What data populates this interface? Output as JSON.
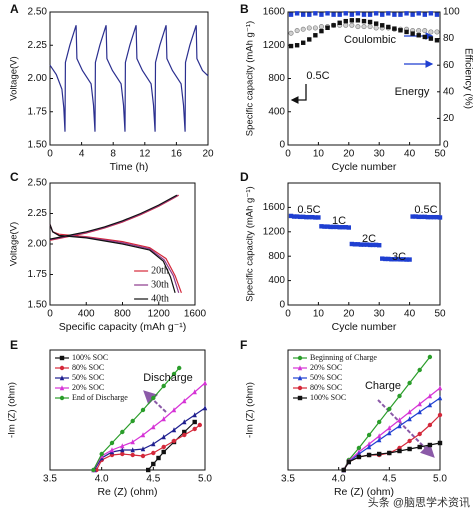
{
  "chart_data": [
    {
      "panel": "A",
      "type": "line",
      "xlabel": "Time (h)",
      "ylabel": "Voltage(V)",
      "xlim": [
        0,
        20
      ],
      "xticks": [
        0,
        4,
        8,
        12,
        16,
        20
      ],
      "ylim": [
        1.5,
        2.5
      ],
      "yticks": [
        {
          "value": 1.5,
          "label": "1.50"
        },
        {
          "value": 1.75,
          "label": "1.75"
        },
        {
          "value": 2.0,
          "label": "2.00"
        },
        {
          "value": 2.25,
          "label": "2.25"
        },
        {
          "value": 2.5,
          "label": "2.50"
        }
      ],
      "series": [
        {
          "color": "#2b2f8f",
          "marker": "none",
          "x": [
            0,
            0.8,
            1.5,
            1.75,
            1.9,
            1.95,
            2.5,
            3.3,
            3.4,
            4.1,
            5.2,
            5.5,
            5.7,
            5.75,
            6.3,
            7.1,
            7.2,
            7.9,
            9.0,
            9.3,
            9.5,
            9.55,
            10.1,
            10.9,
            11.0,
            11.7,
            12.8,
            13.1,
            13.3,
            13.35,
            13.9,
            14.7,
            14.8,
            15.5,
            16.6,
            16.9,
            17.1,
            17.15,
            17.7,
            18.5,
            18.6,
            19.3,
            20.0
          ],
          "values": [
            2.1,
            2.03,
            1.92,
            1.78,
            1.6,
            2.12,
            2.25,
            2.4,
            2.15,
            2.06,
            1.96,
            1.8,
            1.6,
            2.12,
            2.25,
            2.4,
            2.15,
            2.06,
            1.96,
            1.8,
            1.6,
            2.12,
            2.25,
            2.4,
            2.15,
            2.06,
            1.96,
            1.8,
            1.6,
            2.12,
            2.25,
            2.4,
            2.15,
            2.06,
            1.96,
            1.8,
            1.6,
            2.12,
            2.25,
            2.4,
            2.15,
            2.06,
            2.02
          ]
        }
      ]
    },
    {
      "panel": "B",
      "type": "scatter",
      "xlabel": "Cycle number",
      "ylabel": "Specific capacity (mAh g⁻¹)",
      "y2label": "Efficiency (%)",
      "xlim": [
        0,
        50
      ],
      "xticks": [
        0,
        10,
        20,
        30,
        40,
        50
      ],
      "ylim": [
        0,
        1600
      ],
      "yticks": [
        0,
        400,
        800,
        1200,
        1600
      ],
      "y2lim": [
        0,
        100
      ],
      "y2ticks": [
        0,
        20,
        40,
        60,
        80,
        100
      ],
      "annotations": [
        "Coulombic",
        "Energy",
        "0.5C"
      ],
      "x": [
        1,
        3,
        5,
        7,
        9,
        11,
        13,
        15,
        17,
        19,
        21,
        23,
        25,
        27,
        29,
        31,
        33,
        35,
        37,
        39,
        41,
        43,
        45,
        47,
        49
      ],
      "series": [
        {
          "color": "#1f3fd1",
          "marker": "square",
          "axis": "y2",
          "values": [
            98,
            99,
            98,
            98,
            99,
            98,
            99,
            98,
            98,
            99,
            98,
            99,
            98,
            98,
            99,
            98,
            99,
            98,
            98,
            99,
            98,
            99,
            98,
            99,
            98
          ]
        },
        {
          "color": "#9a9a9a",
          "marker": "circle",
          "axis": "y2",
          "values": [
            84,
            86,
            87,
            88,
            88,
            89,
            89,
            90,
            90,
            90,
            90,
            89,
            89,
            89,
            88,
            88,
            88,
            87,
            87,
            87,
            86,
            86,
            86,
            85,
            85
          ]
        },
        {
          "color": "#111111",
          "marker": "square",
          "values": [
            1190,
            1200,
            1230,
            1270,
            1320,
            1370,
            1410,
            1440,
            1470,
            1490,
            1500,
            1500,
            1490,
            1480,
            1460,
            1440,
            1420,
            1400,
            1380,
            1360,
            1340,
            1320,
            1300,
            1280,
            1260
          ]
        }
      ]
    },
    {
      "panel": "C",
      "type": "line",
      "xlabel": "Specific capacity (mAh g⁻¹)",
      "ylabel": "Voltage(V)",
      "legend": "lower center",
      "xlim": [
        0,
        1600
      ],
      "xticks": [
        0,
        400,
        800,
        1200,
        1600
      ],
      "ylim": [
        1.5,
        2.5
      ],
      "yticks": [
        {
          "value": 1.5,
          "label": "1.50"
        },
        {
          "value": 1.75,
          "label": "1.75"
        },
        {
          "value": 2.0,
          "label": "2.00"
        },
        {
          "value": 2.25,
          "label": "2.25"
        },
        {
          "value": 2.5,
          "label": "2.50"
        }
      ],
      "series": [
        {
          "name": "20th",
          "color": "#d4283a",
          "marker": "none",
          "x": [
            0,
            30,
            100,
            400,
            800,
            1100,
            1280,
            1380,
            1450,
            null,
            0,
            200,
            400,
            600,
            800,
            1000,
            1200,
            1350,
            1420
          ],
          "values": [
            2.16,
            2.1,
            2.08,
            2.06,
            2.02,
            1.97,
            1.88,
            1.74,
            1.6,
            null,
            2.03,
            2.06,
            2.09,
            2.13,
            2.18,
            2.24,
            2.31,
            2.37,
            2.4
          ]
        },
        {
          "name": "30th",
          "color": "#8b3a8b",
          "marker": "none",
          "x": [
            0,
            30,
            100,
            400,
            800,
            1100,
            1260,
            1360,
            1420,
            null,
            0,
            200,
            400,
            600,
            800,
            1000,
            1200,
            1350,
            1410
          ],
          "values": [
            2.16,
            2.1,
            2.07,
            2.055,
            2.01,
            1.96,
            1.87,
            1.74,
            1.6,
            null,
            2.035,
            2.065,
            2.095,
            2.135,
            2.185,
            2.245,
            2.315,
            2.375,
            2.4
          ]
        },
        {
          "name": "40th",
          "color": "#111111",
          "marker": "none",
          "x": [
            0,
            30,
            100,
            400,
            800,
            1100,
            1250,
            1330,
            1380,
            null,
            0,
            200,
            400,
            600,
            800,
            1000,
            1200,
            1350,
            1400
          ],
          "values": [
            2.16,
            2.1,
            2.07,
            2.05,
            2.0,
            1.95,
            1.86,
            1.73,
            1.6,
            null,
            2.04,
            2.07,
            2.1,
            2.14,
            2.19,
            2.25,
            2.32,
            2.38,
            2.4
          ]
        }
      ]
    },
    {
      "panel": "D",
      "type": "scatter",
      "xlabel": "Cycle number",
      "ylabel": "Specific capacity (mAh g⁻¹)",
      "xlim": [
        0,
        50
      ],
      "xticks": [
        0,
        10,
        20,
        30,
        40,
        50
      ],
      "ylim": [
        0,
        2000
      ],
      "yticks": [
        0,
        400,
        800,
        1200,
        1600
      ],
      "annotations": [
        "0.5C",
        "1C",
        "2C",
        "3C",
        "0.5C"
      ],
      "x": [
        1,
        2,
        3,
        4,
        5,
        6,
        7,
        8,
        9,
        10,
        11,
        12,
        13,
        14,
        15,
        16,
        17,
        18,
        19,
        20,
        21,
        22,
        23,
        24,
        25,
        26,
        27,
        28,
        29,
        30,
        31,
        32,
        33,
        34,
        35,
        36,
        37,
        38,
        39,
        40,
        41,
        42,
        43,
        44,
        45,
        46,
        47,
        48,
        49,
        50
      ],
      "series": [
        {
          "color": "#1f3fd1",
          "marker": "square",
          "values": [
            1460,
            1450,
            1450,
            1445,
            1445,
            1440,
            1440,
            1440,
            1435,
            1435,
            1290,
            1285,
            1285,
            1280,
            1280,
            1280,
            1275,
            1275,
            1275,
            1270,
            1000,
            995,
            995,
            990,
            990,
            990,
            985,
            985,
            985,
            980,
            760,
            755,
            755,
            750,
            750,
            750,
            748,
            748,
            745,
            745,
            1450,
            1450,
            1445,
            1445,
            1445,
            1440,
            1440,
            1440,
            1440,
            1435
          ]
        }
      ]
    },
    {
      "panel": "E",
      "type": "line",
      "xlabel": "Re (Z) (ohm)",
      "ylabel": "-Im (Z) (ohm)",
      "legend": "upper left",
      "xlim": [
        3.5,
        5.0
      ],
      "xticks": [
        3.5,
        {
          "value": 4.0,
          "label": "4.0"
        },
        4.5,
        {
          "value": 5.0,
          "label": "5.0"
        }
      ],
      "ylim": [
        0,
        1.2
      ],
      "annotations": [
        "Discharge"
      ],
      "series": [
        {
          "name": "100% SOC",
          "color": "#111111",
          "marker": "square",
          "x": [
            4.45,
            4.5,
            4.55,
            4.6,
            4.7,
            4.8,
            4.9
          ],
          "values": [
            0.0,
            0.06,
            0.12,
            0.18,
            0.28,
            0.38,
            0.48
          ]
        },
        {
          "name": "80% SOC",
          "color": "#d4283a",
          "marker": "circle",
          "x": [
            3.95,
            4.0,
            4.1,
            4.2,
            4.3,
            4.4,
            4.5,
            4.6,
            4.7,
            4.8,
            4.9,
            4.95
          ],
          "values": [
            0.0,
            0.1,
            0.15,
            0.16,
            0.15,
            0.14,
            0.17,
            0.23,
            0.29,
            0.35,
            0.41,
            0.45
          ]
        },
        {
          "name": "50% SOC",
          "color": "#1f1f8f",
          "marker": "triangle",
          "x": [
            3.93,
            4.0,
            4.1,
            4.2,
            4.3,
            4.4,
            4.5,
            4.6,
            4.7,
            4.8,
            4.9,
            5.0
          ],
          "values": [
            0.0,
            0.12,
            0.18,
            0.2,
            0.2,
            0.21,
            0.26,
            0.33,
            0.4,
            0.48,
            0.55,
            0.62
          ]
        },
        {
          "name": "20% SOC",
          "color": "#d633d6",
          "marker": "triangle",
          "x": [
            3.92,
            4.0,
            4.1,
            4.2,
            4.3,
            4.4,
            4.5,
            4.6,
            4.7,
            4.8,
            4.9,
            5.0
          ],
          "values": [
            0.0,
            0.14,
            0.2,
            0.24,
            0.28,
            0.35,
            0.43,
            0.51,
            0.6,
            0.69,
            0.78,
            0.87
          ]
        },
        {
          "name": "End of Discharge",
          "color": "#2a9d2a",
          "marker": "circle",
          "x": [
            3.92,
            4.0,
            4.1,
            4.2,
            4.3,
            4.4,
            4.5,
            4.6,
            4.7,
            4.75
          ],
          "values": [
            0.0,
            0.16,
            0.27,
            0.38,
            0.49,
            0.6,
            0.72,
            0.84,
            0.96,
            1.02
          ]
        }
      ]
    },
    {
      "panel": "F",
      "type": "line",
      "xlabel": "Re (Z) (ohm)",
      "ylabel": "-Im (Z) (ohm)",
      "legend": "upper left",
      "xlim": [
        3.5,
        5.0
      ],
      "xticks": [
        3.5,
        {
          "value": 4.0,
          "label": "4.0"
        },
        4.5,
        {
          "value": 5.0,
          "label": "5.0"
        }
      ],
      "ylim": [
        0,
        1.2
      ],
      "annotations": [
        "Charge"
      ],
      "series": [
        {
          "name": "Beginning of Charge",
          "color": "#2a9d2a",
          "marker": "circle",
          "x": [
            4.05,
            4.1,
            4.2,
            4.3,
            4.4,
            4.5,
            4.6,
            4.7,
            4.8,
            4.9
          ],
          "values": [
            0.0,
            0.1,
            0.22,
            0.35,
            0.48,
            0.61,
            0.74,
            0.87,
            1.0,
            1.13
          ]
        },
        {
          "name": "20% SOC",
          "color": "#d633d6",
          "marker": "triangle",
          "x": [
            4.05,
            4.1,
            4.2,
            4.3,
            4.4,
            4.5,
            4.6,
            4.7,
            4.8,
            4.9,
            5.0
          ],
          "values": [
            0.0,
            0.09,
            0.18,
            0.26,
            0.34,
            0.42,
            0.5,
            0.58,
            0.66,
            0.74,
            0.82
          ]
        },
        {
          "name": "50% SOC",
          "color": "#1f3fd1",
          "marker": "triangle",
          "x": [
            4.05,
            4.1,
            4.2,
            4.3,
            4.4,
            4.5,
            4.6,
            4.7,
            4.8,
            4.9,
            5.0
          ],
          "values": [
            0.0,
            0.08,
            0.16,
            0.23,
            0.3,
            0.37,
            0.44,
            0.51,
            0.58,
            0.65,
            0.72
          ]
        },
        {
          "name": "80% SOC",
          "color": "#d4283a",
          "marker": "circle",
          "x": [
            4.05,
            4.1,
            4.2,
            4.3,
            4.4,
            4.5,
            4.6,
            4.7,
            4.8,
            4.9,
            5.0
          ],
          "values": [
            0.0,
            0.08,
            0.13,
            0.15,
            0.15,
            0.17,
            0.22,
            0.29,
            0.36,
            0.45,
            0.55
          ]
        },
        {
          "name": "100% SOC",
          "color": "#111111",
          "marker": "square",
          "x": [
            4.05,
            4.1,
            4.2,
            4.3,
            4.4,
            4.5,
            4.6,
            4.7,
            4.8,
            4.9,
            5.0
          ],
          "values": [
            0.0,
            0.08,
            0.13,
            0.15,
            0.16,
            0.17,
            0.19,
            0.21,
            0.23,
            0.25,
            0.27
          ]
        }
      ]
    }
  ],
  "watermark": "头条 @脑思学术资讯"
}
